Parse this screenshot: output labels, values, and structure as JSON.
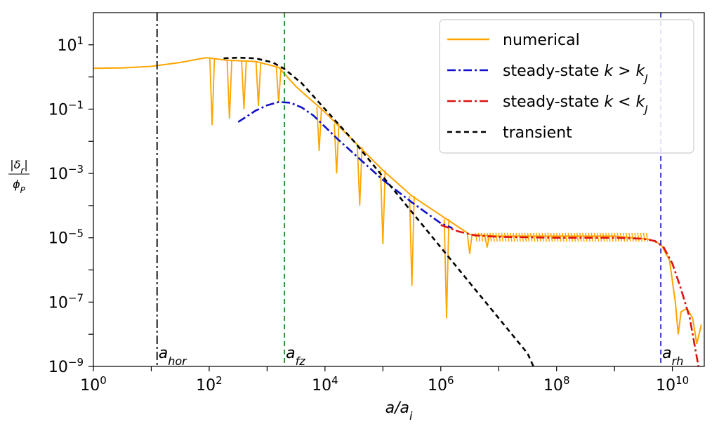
{
  "chart_data": {
    "type": "line",
    "title": "",
    "xlabel": "a/a_i",
    "ylabel": "|δ_r| / φ_P",
    "x_scale": "log",
    "y_scale": "log",
    "xlim_log10": [
      0,
      10.55
    ],
    "ylim_log10": [
      -9,
      2
    ],
    "grid": false,
    "legend_position": "top-right",
    "x_tick_exponents": [
      "0",
      "2",
      "4",
      "6",
      "8",
      "10"
    ],
    "y_tick_exponents": [
      "1",
      "−1",
      "−3",
      "−5",
      "−7",
      "−9"
    ],
    "vlines": [
      {
        "label": "a_hor",
        "x_log10": 1.1,
        "color": "#000000",
        "style": "dashdot"
      },
      {
        "label": "a_fz",
        "x_log10": 3.3,
        "color": "#228B22",
        "style": "dashed"
      },
      {
        "label": "a_rh",
        "x_log10": 9.8,
        "color": "#1f1fbf",
        "style": "dashed"
      }
    ],
    "series": [
      {
        "name": "numerical",
        "color": "#FFA500",
        "style": "solid",
        "envelope_log10": [
          [
            0,
            0.27
          ],
          [
            0.5,
            0.28
          ],
          [
            1.0,
            0.33
          ],
          [
            1.5,
            0.45
          ],
          [
            1.95,
            0.6
          ],
          [
            2.3,
            0.52
          ],
          [
            2.8,
            0.48
          ],
          [
            3.2,
            0.3
          ],
          [
            3.5,
            -0.3
          ],
          [
            4.0,
            -1.1
          ],
          [
            4.5,
            -2.0
          ],
          [
            5.0,
            -2.9
          ],
          [
            5.5,
            -3.7
          ],
          [
            6.0,
            -4.3
          ],
          [
            6.5,
            -4.9
          ],
          [
            7.0,
            -4.95
          ],
          [
            8.0,
            -4.95
          ],
          [
            9.0,
            -4.95
          ],
          [
            9.6,
            -5.05
          ],
          [
            9.8,
            -5.2
          ],
          [
            9.95,
            -5.7
          ],
          [
            10.05,
            -7.0
          ],
          [
            10.1,
            -8.0
          ],
          [
            10.15,
            -7.3
          ],
          [
            10.25,
            -7.2
          ],
          [
            10.35,
            -7.5
          ],
          [
            10.42,
            -8.3
          ],
          [
            10.5,
            -7.7
          ]
        ],
        "dips_log10": [
          [
            2.05,
            -1.5
          ],
          [
            2.35,
            -1.3
          ],
          [
            2.6,
            -1.0
          ],
          [
            2.85,
            -0.9
          ],
          [
            3.2,
            -0.8
          ],
          [
            3.9,
            -2.3
          ],
          [
            4.2,
            -3.0
          ],
          [
            4.6,
            -4.0
          ],
          [
            5.0,
            -5.2
          ],
          [
            5.5,
            -6.5
          ],
          [
            6.1,
            -7.5
          ],
          [
            6.5,
            -5.5
          ],
          [
            6.8,
            -5.3
          ]
        ]
      },
      {
        "name": "steady-state k > k_J",
        "color": "#1111cc",
        "style": "dashdot",
        "points_log10": [
          [
            2.5,
            -1.4
          ],
          [
            2.8,
            -1.05
          ],
          [
            3.0,
            -0.88
          ],
          [
            3.2,
            -0.78
          ],
          [
            3.4,
            -0.8
          ],
          [
            3.6,
            -0.95
          ],
          [
            3.8,
            -1.2
          ],
          [
            4.2,
            -1.9
          ],
          [
            4.6,
            -2.55
          ],
          [
            5.0,
            -3.2
          ],
          [
            5.5,
            -3.9
          ],
          [
            6.0,
            -4.55
          ],
          [
            6.2,
            -4.7
          ]
        ]
      },
      {
        "name": "steady-state k < k_J",
        "color": "#dd1111",
        "style": "dashdot",
        "points_log10": [
          [
            6.0,
            -4.6
          ],
          [
            6.3,
            -4.8
          ],
          [
            6.6,
            -4.93
          ],
          [
            7.0,
            -4.97
          ],
          [
            8.0,
            -5.0
          ],
          [
            9.0,
            -5.0
          ],
          [
            9.5,
            -5.03
          ],
          [
            9.7,
            -5.1
          ],
          [
            9.85,
            -5.3
          ],
          [
            10.0,
            -5.8
          ],
          [
            10.15,
            -6.6
          ],
          [
            10.3,
            -7.5
          ],
          [
            10.4,
            -8.5
          ],
          [
            10.45,
            -9.0
          ]
        ]
      },
      {
        "name": "transient",
        "color": "#000000",
        "style": "dashed",
        "points_log10": [
          [
            2.25,
            0.58
          ],
          [
            2.5,
            0.6
          ],
          [
            2.8,
            0.58
          ],
          [
            3.1,
            0.45
          ],
          [
            3.3,
            0.25
          ],
          [
            3.6,
            -0.2
          ],
          [
            4.0,
            -1.0
          ],
          [
            4.5,
            -2.0
          ],
          [
            5.0,
            -3.1
          ],
          [
            5.5,
            -4.2
          ],
          [
            6.0,
            -5.3
          ],
          [
            6.5,
            -6.4
          ],
          [
            7.0,
            -7.5
          ],
          [
            7.5,
            -8.6
          ],
          [
            7.6,
            -9.0
          ]
        ]
      }
    ]
  }
}
